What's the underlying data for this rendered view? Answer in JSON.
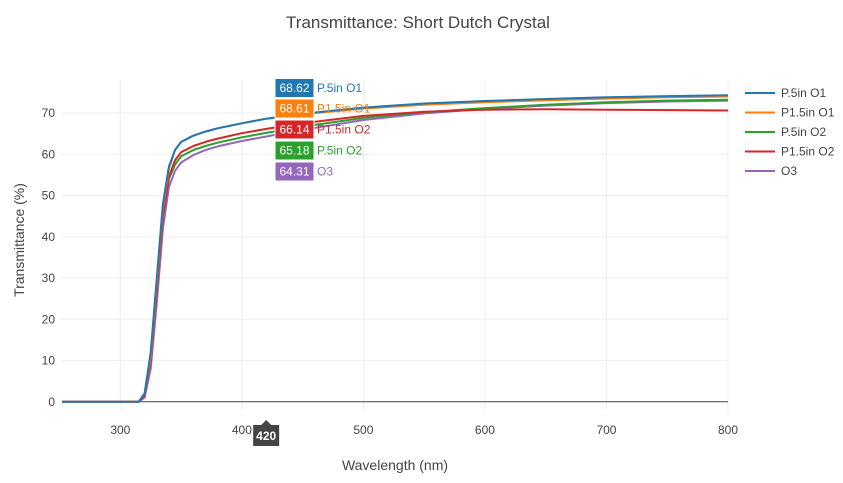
{
  "chart_data": {
    "type": "line",
    "title": "Transmittance: Short Dutch Crystal",
    "xlabel": "Wavelength (nm)",
    "ylabel": "Transmittance (%)",
    "xlim": [
      252,
      800
    ],
    "ylim": [
      -2,
      78
    ],
    "x_ticks": [
      300,
      400,
      500,
      600,
      700,
      800
    ],
    "y_ticks": [
      0,
      10,
      20,
      30,
      40,
      50,
      60,
      70
    ],
    "grid": true,
    "legend_position": "right",
    "hover": {
      "x": 420,
      "x_label": "420",
      "values": [
        "68.62",
        "68.61",
        "66.14",
        "65.18",
        "64.31"
      ],
      "labels": [
        "P.5in O1",
        "P1.5in O1",
        "P1.5in O2",
        "P.5in O2",
        "O3"
      ],
      "colors": [
        "#1f77b4",
        "#ff7f0e",
        "#d62728",
        "#2ca02c",
        "#9467bd"
      ]
    },
    "series": [
      {
        "name": "P.5in O1",
        "color": "#1f77b4",
        "x": [
          252,
          300,
          315,
          320,
          325,
          330,
          335,
          340,
          345,
          350,
          360,
          370,
          380,
          400,
          420,
          450,
          500,
          550,
          600,
          650,
          700,
          750,
          800
        ],
        "y": [
          0,
          0,
          0,
          2,
          12,
          30,
          48,
          57,
          61,
          63,
          64.5,
          65.5,
          66.3,
          67.5,
          68.62,
          69.8,
          71.3,
          72.3,
          72.9,
          73.4,
          73.8,
          74.1,
          74.3
        ]
      },
      {
        "name": "P1.5in O1",
        "color": "#ff7f0e",
        "x": [
          252,
          300,
          315,
          320,
          325,
          330,
          335,
          340,
          345,
          350,
          360,
          370,
          380,
          400,
          420,
          450,
          500,
          550,
          600,
          650,
          700,
          750,
          800
        ],
        "y": [
          0,
          0,
          0,
          2,
          11,
          29,
          47,
          56.5,
          61,
          63,
          64.5,
          65.5,
          66.3,
          67.5,
          68.61,
          69.7,
          71.1,
          72.0,
          72.6,
          73.1,
          73.5,
          73.8,
          74.0
        ]
      },
      {
        "name": "P.5in O2",
        "color": "#2ca02c",
        "x": [
          252,
          300,
          315,
          320,
          325,
          330,
          335,
          340,
          345,
          350,
          360,
          370,
          380,
          400,
          420,
          450,
          500,
          550,
          600,
          650,
          700,
          750,
          800
        ],
        "y": [
          0,
          0,
          0,
          1.5,
          10,
          27,
          45,
          54,
          57.5,
          59.5,
          61,
          62,
          62.8,
          64.1,
          65.18,
          66.7,
          68.8,
          70.2,
          71.2,
          72.0,
          72.6,
          73.0,
          73.2
        ]
      },
      {
        "name": "P1.5in O2",
        "color": "#d62728",
        "x": [
          252,
          300,
          315,
          320,
          325,
          330,
          335,
          340,
          345,
          350,
          360,
          370,
          380,
          400,
          420,
          450,
          500,
          550,
          600,
          650,
          700,
          750,
          800
        ],
        "y": [
          0,
          0,
          0,
          1.5,
          10,
          27,
          45,
          54.5,
          58.5,
          60.5,
          62,
          63,
          63.8,
          65.1,
          66.14,
          67.5,
          69.3,
          70.3,
          70.8,
          70.9,
          70.8,
          70.7,
          70.6
        ]
      },
      {
        "name": "O3",
        "color": "#9467bd",
        "x": [
          252,
          300,
          315,
          320,
          325,
          330,
          335,
          340,
          345,
          350,
          360,
          370,
          380,
          400,
          420,
          450,
          500,
          550,
          600,
          650,
          700,
          750,
          800
        ],
        "y": [
          0,
          0,
          0,
          1,
          8,
          24,
          42,
          52,
          56,
          58,
          59.8,
          61,
          61.9,
          63.2,
          64.31,
          65.9,
          68.3,
          69.9,
          71.0,
          71.8,
          72.4,
          72.8,
          73.0
        ]
      }
    ]
  }
}
